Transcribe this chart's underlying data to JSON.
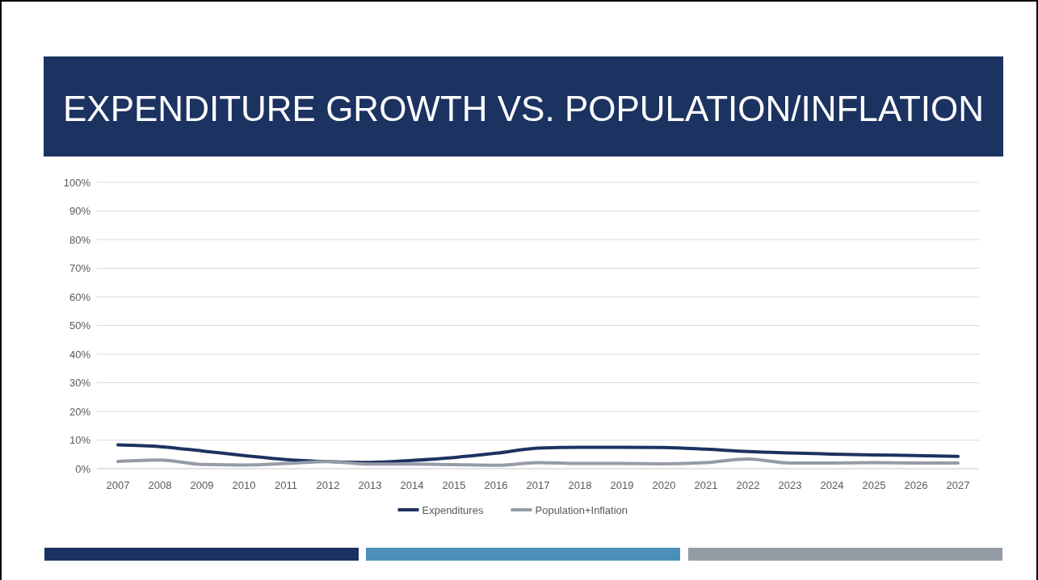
{
  "chart_data": {
    "type": "line",
    "title": "EXPENDITURE GROWTH VS. POPULATION/INFLATION",
    "categories": [
      "2007",
      "2008",
      "2009",
      "2010",
      "2011",
      "2012",
      "2013",
      "2014",
      "2015",
      "2016",
      "2017",
      "2018",
      "2019",
      "2020",
      "2021",
      "2022",
      "2023",
      "2024",
      "2025",
      "2026",
      "2027"
    ],
    "series": [
      {
        "name": "Expenditures",
        "color": "#1c3260",
        "values": [
          8.3,
          7.7,
          6.2,
          4.6,
          3.2,
          2.5,
          2.2,
          2.9,
          3.9,
          5.4,
          7.2,
          7.5,
          7.5,
          7.4,
          6.8,
          6.0,
          5.5,
          5.1,
          4.8,
          4.6,
          4.3
        ]
      },
      {
        "name": "Population+Inflation",
        "color": "#959ca6",
        "values": [
          2.5,
          3.0,
          1.5,
          1.3,
          1.8,
          2.5,
          1.6,
          1.6,
          1.4,
          1.2,
          2.1,
          1.8,
          1.8,
          1.7,
          2.1,
          3.4,
          2.0,
          2.0,
          2.1,
          2.0,
          2.0
        ]
      }
    ],
    "ylim": [
      0,
      100
    ],
    "yticks": [
      {
        "value": 0,
        "label": "0%"
      },
      {
        "value": 10,
        "label": "10%"
      },
      {
        "value": 20,
        "label": "20%"
      },
      {
        "value": 30,
        "label": "30%"
      },
      {
        "value": 40,
        "label": "40%"
      },
      {
        "value": 50,
        "label": "50%"
      },
      {
        "value": 60,
        "label": "60%"
      },
      {
        "value": 70,
        "label": "70%"
      },
      {
        "value": 80,
        "label": "80%"
      },
      {
        "value": 90,
        "label": "90%"
      },
      {
        "value": 100,
        "label": "100%"
      }
    ],
    "grid": "y",
    "legend": "bottom",
    "marker": "none",
    "line_style": "solid"
  }
}
